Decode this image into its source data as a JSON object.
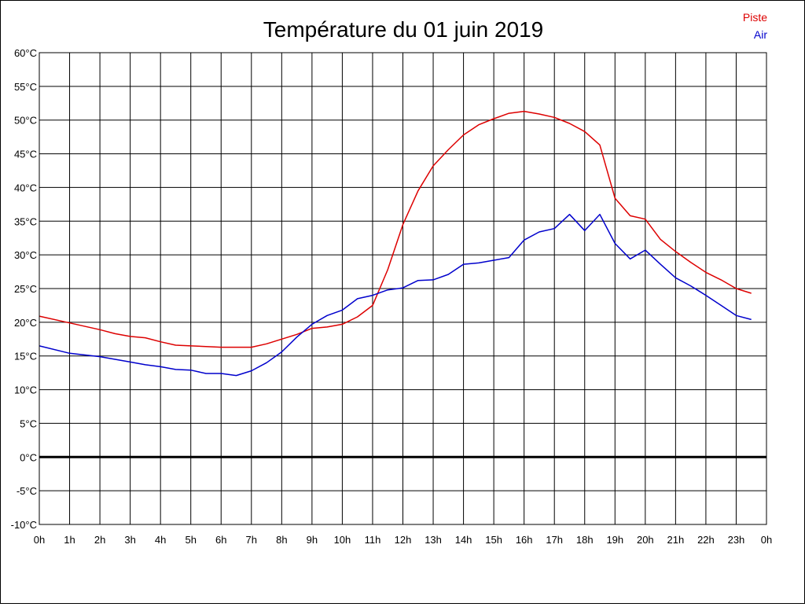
{
  "chart_data": {
    "type": "line",
    "title": "Température du 01 juin 2019",
    "xlabel": "",
    "ylabel": "",
    "grid": true,
    "legend_position": "top-right",
    "xlim": [
      0,
      24
    ],
    "ylim": [
      -10,
      60
    ],
    "y_ticks": [
      -10,
      -5,
      0,
      5,
      10,
      15,
      20,
      25,
      30,
      35,
      40,
      45,
      50,
      55,
      60
    ],
    "y_tick_labels": [
      "-10°C",
      "-5°C",
      "0°C",
      "5°C",
      "10°C",
      "15°C",
      "20°C",
      "25°C",
      "30°C",
      "35°C",
      "40°C",
      "45°C",
      "50°C",
      "55°C",
      "60°C"
    ],
    "x_ticks": [
      0,
      1,
      2,
      3,
      4,
      5,
      6,
      7,
      8,
      9,
      10,
      11,
      12,
      13,
      14,
      15,
      16,
      17,
      18,
      19,
      20,
      21,
      22,
      23,
      24
    ],
    "x_tick_labels": [
      "0h",
      "1h",
      "2h",
      "3h",
      "4h",
      "5h",
      "6h",
      "7h",
      "8h",
      "9h",
      "10h",
      "11h",
      "12h",
      "13h",
      "14h",
      "15h",
      "16h",
      "17h",
      "18h",
      "19h",
      "20h",
      "21h",
      "22h",
      "23h",
      "0h"
    ],
    "zero_line": 0,
    "colors": {
      "Piste": "#dd0000",
      "Air": "#0000cc",
      "zero_line": "#000000"
    },
    "series": [
      {
        "name": "Piste",
        "color": "#dd0000",
        "x": [
          0,
          1,
          2,
          2.5,
          3,
          3.5,
          4,
          4.5,
          5,
          5.5,
          6,
          6.5,
          7,
          7.5,
          8,
          8.5,
          9,
          9.5,
          10,
          10.5,
          11,
          11.5,
          12,
          12.5,
          13,
          13.5,
          14,
          14.5,
          15,
          15.5,
          16,
          16.5,
          17,
          17.5,
          18,
          18.5,
          19,
          19.5,
          20,
          20.5,
          21,
          21.5,
          22,
          22.5,
          23,
          23.5
        ],
        "y": [
          20.9,
          19.9,
          18.9,
          18.3,
          17.9,
          17.7,
          17.1,
          16.6,
          16.5,
          16.4,
          16.3,
          16.3,
          16.3,
          16.8,
          17.5,
          18.2,
          19.1,
          19.3,
          19.7,
          20.8,
          22.5,
          27.8,
          34.5,
          39.5,
          43.2,
          45.6,
          47.8,
          49.3,
          50.2,
          51.0,
          51.3,
          50.9,
          50.4,
          49.5,
          48.3,
          46.3,
          38.4,
          35.8,
          35.3,
          32.3,
          30.5,
          28.9,
          27.4,
          26.3,
          25.0,
          24.3
        ]
      },
      {
        "name": "Air",
        "color": "#0000cc",
        "x": [
          0,
          1,
          2,
          2.5,
          3,
          3.5,
          4,
          4.5,
          5,
          5.5,
          6,
          6.5,
          7,
          7.5,
          8,
          8.5,
          9,
          9.5,
          10,
          10.5,
          11,
          11.5,
          12,
          12.5,
          13,
          13.5,
          14,
          14.5,
          15,
          15.5,
          16,
          16.5,
          17,
          17.5,
          18,
          18.5,
          19,
          19.5,
          20,
          20.5,
          21,
          21.5,
          22,
          22.5,
          23,
          23.5
        ],
        "y": [
          16.5,
          15.4,
          14.9,
          14.5,
          14.1,
          13.7,
          13.4,
          13.0,
          12.9,
          12.4,
          12.4,
          12.1,
          12.8,
          14.0,
          15.6,
          17.8,
          19.7,
          21.0,
          21.8,
          23.5,
          24.0,
          24.8,
          25.1,
          26.2,
          26.3,
          27.1,
          28.6,
          28.8,
          29.2,
          29.6,
          32.2,
          33.4,
          33.9,
          36.0,
          33.6,
          36.0,
          31.7,
          29.4,
          30.7,
          28.6,
          26.6,
          25.4,
          24.0,
          22.5,
          21.0,
          20.4
        ]
      }
    ]
  }
}
